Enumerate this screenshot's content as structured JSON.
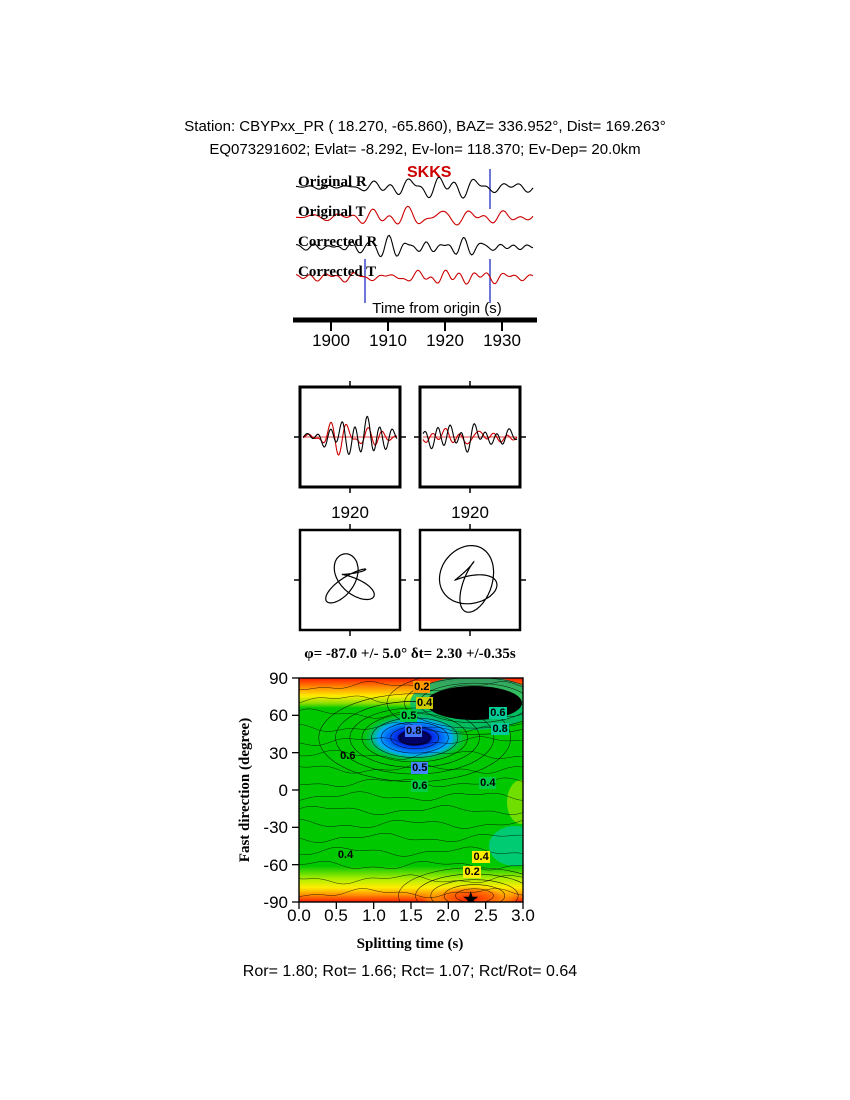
{
  "header": {
    "line1": "Station: CBYPxx_PR (  18.270,  -65.860), BAZ=  336.952°, Dist=  169.263°",
    "line2": "EQ073291602; Evlat=  -8.292, Ev-lon=  118.370; Ev-Dep= 20.0km"
  },
  "station": {
    "name": "CBYPxx_PR",
    "lat": 18.27,
    "lon": -65.86,
    "baz_deg": 336.952,
    "dist_deg": 169.263,
    "event_id": "EQ073291602",
    "ev_lat": -8.292,
    "ev_lon": 118.37,
    "ev_depth_km": 20.0
  },
  "waveform_panel": {
    "phase_label": "SKKS",
    "traces": [
      "Original R",
      "Original T",
      "Corrected R",
      "Corrected T"
    ],
    "xlabel": "Time from origin (s)",
    "xticks": [
      "1900",
      "1910",
      "1920",
      "1930"
    ]
  },
  "window_panels": {
    "left_xtick": "1920",
    "right_xtick": "1920"
  },
  "contour": {
    "title": "φ= -87.0 +/- 5.0° δt= 2.30 +/-0.35s",
    "ylabel": "Fast direction (degree)",
    "xlabel": "Splitting time (s)",
    "yticks": [
      "90",
      "60",
      "30",
      "0",
      "-30",
      "-60",
      "-90"
    ],
    "xticks": [
      "0.0",
      "0.5",
      "1.0",
      "1.5",
      "2.0",
      "2.5",
      "3.0"
    ],
    "annotations": [
      {
        "text": "0.2",
        "bg": "#ff9900",
        "fx": 0.545,
        "fy": 0.04
      },
      {
        "text": "0.4",
        "bg": "#cccc00",
        "fx": 0.558,
        "fy": 0.112
      },
      {
        "text": "0.5",
        "bg": "#00cc44",
        "fx": 0.487,
        "fy": 0.17
      },
      {
        "text": "0.8",
        "bg": "#4477ff",
        "fx": 0.509,
        "fy": 0.237
      },
      {
        "text": "0.6",
        "bg": "#00cc99",
        "fx": 0.885,
        "fy": 0.156
      },
      {
        "text": "0.8",
        "bg": "#00cc99",
        "fx": 0.895,
        "fy": 0.228
      },
      {
        "text": "0.5",
        "bg": "#4488ff",
        "fx": 0.536,
        "fy": 0.4
      },
      {
        "text": "0.6",
        "bg": "#00cc44",
        "fx": 0.536,
        "fy": 0.48
      },
      {
        "text": "0.4",
        "bg": "#00cc44",
        "fx": 0.84,
        "fy": 0.467
      },
      {
        "text": "0.6",
        "bg": null,
        "fx": 0.215,
        "fy": 0.35
      },
      {
        "text": "0.4",
        "bg": null,
        "fx": 0.205,
        "fy": 0.79
      },
      {
        "text": "0.4",
        "bg": "#ffee00",
        "fx": 0.81,
        "fy": 0.799
      },
      {
        "text": "0.2",
        "bg": "#ffee00",
        "fx": 0.77,
        "fy": 0.868
      }
    ]
  },
  "footer": {
    "text": "Ror= 1.80; Rot= 1.66; Rct= 1.07; Rct/Rot= 0.64"
  },
  "results": {
    "Ror": 1.8,
    "Rot": 1.66,
    "Rct": 1.07,
    "Rct_over_Rot": 0.64
  },
  "colors": {
    "trace_r": "#000000",
    "trace_t": "#cc0000",
    "window_marker": "#3f48cc",
    "phase_label": "#cc0000"
  },
  "chart_data": [
    {
      "type": "line",
      "title": "SKKS radial/transverse waveforms before and after splitting correction",
      "xlabel": "Time from origin (s)",
      "xlim": [
        1895,
        1937
      ],
      "xticks": [
        1900,
        1910,
        1920,
        1930
      ],
      "series": [
        {
          "name": "Original R",
          "color": "#000000"
        },
        {
          "name": "Original T",
          "color": "#cc0000"
        },
        {
          "name": "Corrected R",
          "color": "#000000"
        },
        {
          "name": "Corrected T",
          "color": "#cc0000"
        }
      ],
      "window_center_s": 1920
    },
    {
      "type": "heatmap",
      "title": "Splitting parameter error surface",
      "xlabel": "Splitting time (s)",
      "ylabel": "Fast direction (degree)",
      "xlim": [
        0.0,
        3.0
      ],
      "ylim": [
        -90,
        90
      ],
      "xticks": [
        0.0,
        0.5,
        1.0,
        1.5,
        2.0,
        2.5,
        3.0
      ],
      "yticks": [
        -90,
        -60,
        -30,
        0,
        30,
        60,
        90
      ],
      "contour_levels": [
        0.2,
        0.4,
        0.5,
        0.6,
        0.8
      ],
      "best_fit": {
        "phi_deg": -87.0,
        "phi_err_deg": 5.0,
        "dt_s": 2.3,
        "dt_err_s": 0.35
      },
      "minimum_region": {
        "dt_s": [
          1.0,
          2.2
        ],
        "phi_deg": [
          30,
          55
        ]
      },
      "maximum_region": {
        "dt_s": [
          1.8,
          3.0
        ],
        "phi_deg": [
          55,
          85
        ]
      }
    }
  ]
}
